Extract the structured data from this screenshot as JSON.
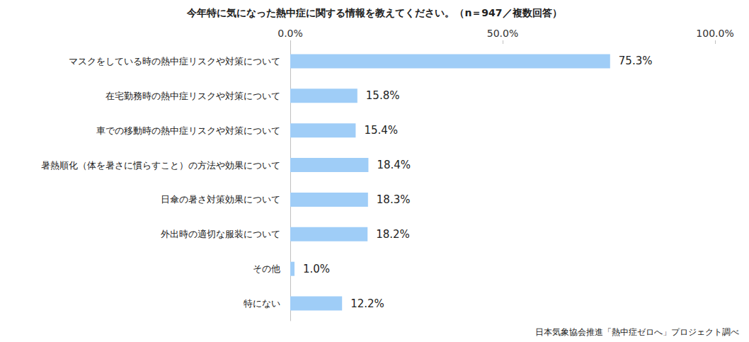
{
  "chart_data": {
    "type": "bar",
    "orientation": "horizontal",
    "title": "今年特に気になった熱中症に関する情報を教えてください。（n＝947／複数回答）",
    "categories": [
      "マスクをしている時の熱中症リスクや対策について",
      "在宅勤務時の熱中症リスクや対策について",
      "車での移動時の熱中症リスクや対策について",
      "暑熱順化（体を暑さに慣らすこと）の方法や効果について",
      "日傘の暑さ対策効果について",
      "外出時の適切な服装について",
      "その他",
      "特にない"
    ],
    "values": [
      75.3,
      15.8,
      15.4,
      18.4,
      18.3,
      18.2,
      1.0,
      12.2
    ],
    "value_labels": [
      "75.3%",
      "15.8%",
      "15.4%",
      "18.4%",
      "18.3%",
      "18.2%",
      "1.0%",
      "12.2%"
    ],
    "color": "#9fcdf7",
    "xlim": [
      0,
      100
    ],
    "xticks": [
      {
        "value": 0,
        "label": "0.0%"
      },
      {
        "value": 50,
        "label": "50.0%"
      },
      {
        "value": 100,
        "label": "100.0%"
      }
    ],
    "grid": false,
    "data_labels": true,
    "annotations": [
      "日本気象協会推進「熱中症ゼロへ」プロジェクト調べ"
    ]
  }
}
